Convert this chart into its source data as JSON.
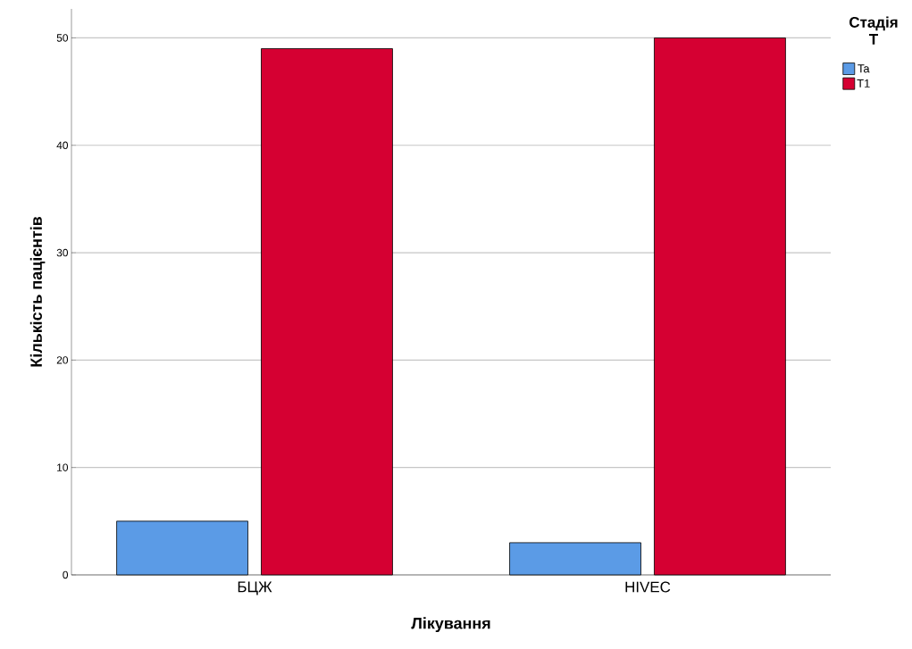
{
  "chart_data": {
    "type": "bar",
    "xlabel": "Лікування",
    "ylabel": "Кількість пацієнтів",
    "legend_title": "Стадія T",
    "categories": [
      "БЦЖ",
      "HIVEC"
    ],
    "series": [
      {
        "name": "Ta",
        "color": "#5b9be6",
        "values": [
          5,
          3
        ]
      },
      {
        "name": "T1",
        "color": "#d50032",
        "values": [
          49,
          50
        ]
      }
    ],
    "ylim": [
      0,
      52.7
    ],
    "yticks": [
      0,
      10,
      20,
      30,
      40,
      50
    ],
    "grid": "y",
    "legend": "top right"
  }
}
